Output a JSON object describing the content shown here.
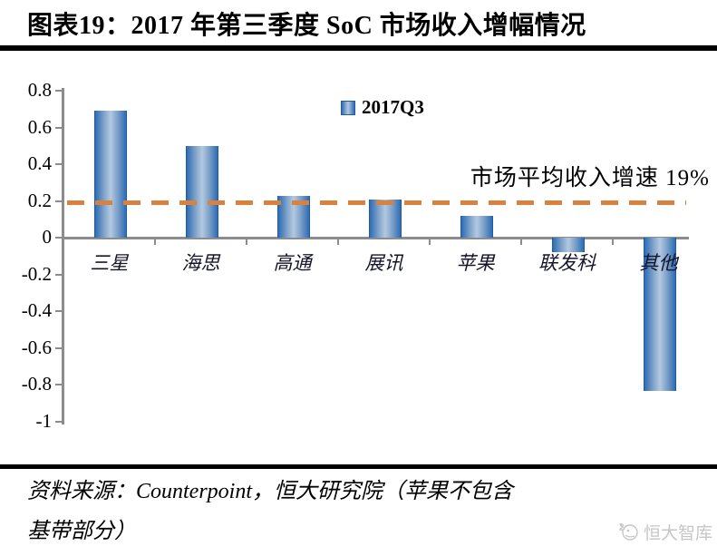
{
  "header": {
    "title": "图表19：2017 年第三季度 SoC 市场收入增幅情况"
  },
  "chart_data": {
    "type": "bar",
    "title": "图表19：2017 年第三季度 SoC 市场收入增幅情况",
    "categories": [
      "三星",
      "海思",
      "高通",
      "展讯",
      "苹果",
      "联发科",
      "其他"
    ],
    "series": [
      {
        "name": "2017Q3",
        "values": [
          0.69,
          0.5,
          0.23,
          0.21,
          0.12,
          -0.08,
          -0.83
        ]
      }
    ],
    "ylim": [
      -1,
      0.8
    ],
    "yticks": [
      {
        "value": 0.8,
        "label": "0.8"
      },
      {
        "value": 0.6,
        "label": "0.6"
      },
      {
        "value": 0.4,
        "label": "0.4"
      },
      {
        "value": 0.2,
        "label": "0.2"
      },
      {
        "value": 0,
        "label": "0"
      },
      {
        "value": -0.2,
        "label": "-0.2"
      },
      {
        "value": -0.4,
        "label": "-0.4"
      },
      {
        "value": -0.6,
        "label": "-0.6"
      },
      {
        "value": -0.8,
        "label": "-0.8"
      },
      {
        "value": -1,
        "label": "-1"
      }
    ],
    "legend": {
      "position": "top-center",
      "entries": [
        "2017Q3"
      ]
    },
    "average_line": {
      "value": 0.19,
      "style": "dashed",
      "color": "#d9813f",
      "label": "市场平均收入增速 19%"
    },
    "grid": false,
    "colors": {
      "bar_edge": "#2e6cb4",
      "bar_center": "#b3c9e0",
      "axis": "#8c8c8c"
    }
  },
  "footer": {
    "source_line1": "资料来源：Counterpoint，恒大研究院（苹果不包含",
    "source_line2": "基带部分）",
    "watermark_label": "恒大智库"
  }
}
